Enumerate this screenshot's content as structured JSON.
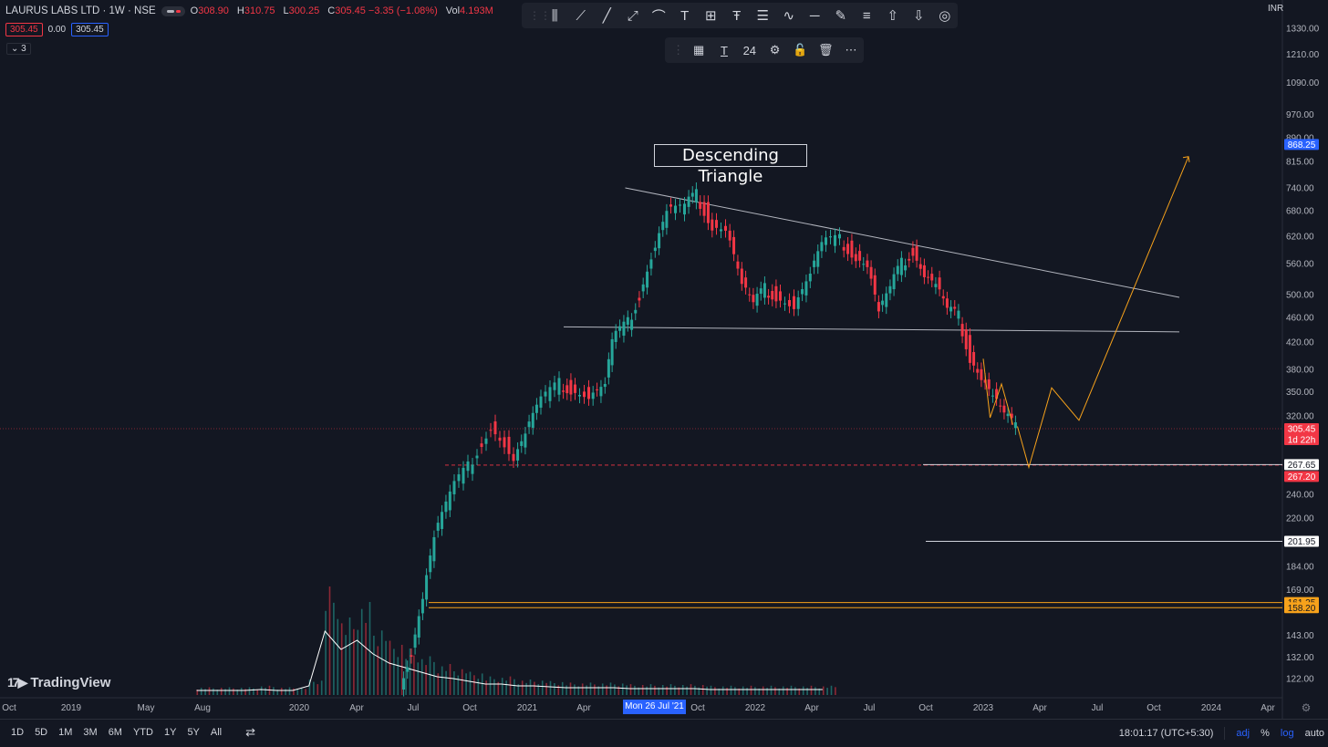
{
  "header": {
    "symbol": "LAURUS LABS LTD · 1W · NSE",
    "ohlc": [
      {
        "k": "O",
        "v": "308.90"
      },
      {
        "k": "H",
        "v": "310.75"
      },
      {
        "k": "L",
        "v": "300.25"
      },
      {
        "k": "C",
        "v": "305.45 −3.35 (−1.08%)"
      },
      {
        "k": "Vol",
        "v": "4.193M"
      }
    ],
    "sell": "305.45",
    "spread": "0.00",
    "buy": "305.45",
    "indicators_count": "3",
    "currency": "INR"
  },
  "toolbar": {
    "icons": [
      "candles-icon",
      "ray-icon",
      "trendline-icon",
      "extended-line-icon",
      "curve-icon",
      "text-icon",
      "grid-icon",
      "text-anchor-icon",
      "pattern-icon",
      "wave-icon",
      "horizontal-line-icon",
      "brush-icon",
      "menu-lines-icon",
      "arrow-up-icon",
      "arrow-down-icon",
      "target-icon"
    ],
    "font_size": "24"
  },
  "annotation": "Descending Triangle",
  "logo": "TradingView",
  "bottom": {
    "ranges": [
      "1D",
      "5D",
      "1M",
      "3M",
      "6M",
      "YTD",
      "1Y",
      "5Y",
      "All"
    ],
    "time": "18:01:17 (UTC+5:30)",
    "adj": "adj",
    "pct": "%",
    "log": "log",
    "auto": "auto"
  },
  "colors": {
    "up": "#26a69a",
    "down": "#f23645",
    "bg": "#131722",
    "accent": "#2962ff",
    "orange": "#f7a21b"
  },
  "chart_data": {
    "type": "candlestick",
    "scale": "log",
    "crosshair_date": "Mon 26 Jul '21",
    "x_ticks": [
      "Oct",
      "2019",
      "May",
      "Aug",
      "2020",
      "Apr",
      "Jul",
      "Oct",
      "2021",
      "Apr",
      "Jul",
      "Oct",
      "2022",
      "Apr",
      "Jul",
      "Oct",
      "2023",
      "Apr",
      "Jul",
      "Oct",
      "2024",
      "Apr"
    ],
    "y_ticks": [
      "1330.00",
      "1210.00",
      "1090.00",
      "970.00",
      "890.00",
      "815.00",
      "740.00",
      "680.00",
      "620.00",
      "560.00",
      "500.00",
      "460.00",
      "420.00",
      "380.00",
      "350.00",
      "320.00",
      "240.00",
      "220.00",
      "201.95",
      "184.00",
      "169.00",
      "143.00",
      "132.00",
      "122.00"
    ],
    "price_labels": [
      {
        "text": "868.25",
        "kind": "blue",
        "y": 868.25
      },
      {
        "text": "305.45",
        "sub": "1d 22h",
        "kind": "red",
        "y": 305.45
      },
      {
        "text": "267.65",
        "kind": "white",
        "y": 267.65
      },
      {
        "text": "267.20",
        "kind": "red",
        "y": 267.2
      },
      {
        "text": "201.95",
        "kind": "white",
        "y": 201.95
      },
      {
        "text": "161.25",
        "kind": "orange",
        "y": 161.25
      },
      {
        "text": "158.20",
        "kind": "orange",
        "y": 158.2
      }
    ],
    "levels": {
      "last": 305.45,
      "dashed": 267.2,
      "h1": 267.65,
      "h2": 201.95,
      "o1": 161.25,
      "o2": 158.2
    },
    "price_path": [
      [
        2020.45,
        120
      ],
      [
        2020.5,
        135
      ],
      [
        2020.55,
        165
      ],
      [
        2020.6,
        205
      ],
      [
        2020.67,
        240
      ],
      [
        2020.75,
        265
      ],
      [
        2020.85,
        310
      ],
      [
        2020.95,
        275
      ],
      [
        2021.0,
        300
      ],
      [
        2021.05,
        330
      ],
      [
        2021.15,
        360
      ],
      [
        2021.2,
        355
      ],
      [
        2021.28,
        345
      ],
      [
        2021.35,
        360
      ],
      [
        2021.38,
        420
      ],
      [
        2021.45,
        450
      ],
      [
        2021.5,
        500
      ],
      [
        2021.57,
        600
      ],
      [
        2021.62,
        680
      ],
      [
        2021.7,
        690
      ],
      [
        2021.75,
        720
      ],
      [
        2021.82,
        650
      ],
      [
        2021.88,
        640
      ],
      [
        2021.95,
        520
      ],
      [
        2022.0,
        480
      ],
      [
        2022.05,
        510
      ],
      [
        2022.1,
        500
      ],
      [
        2022.18,
        480
      ],
      [
        2022.25,
        540
      ],
      [
        2022.3,
        600
      ],
      [
        2022.38,
        610
      ],
      [
        2022.45,
        580
      ],
      [
        2022.5,
        560
      ],
      [
        2022.55,
        470
      ],
      [
        2022.6,
        510
      ],
      [
        2022.65,
        560
      ],
      [
        2022.7,
        590
      ],
      [
        2022.75,
        540
      ],
      [
        2022.8,
        520
      ],
      [
        2022.85,
        470
      ],
      [
        2022.9,
        460
      ],
      [
        2022.95,
        400
      ],
      [
        2023.0,
        370
      ],
      [
        2023.05,
        345
      ],
      [
        2023.1,
        320
      ],
      [
        2023.15,
        305
      ]
    ],
    "volume": [
      0.05,
      0.05,
      0.05,
      0.05,
      0.06,
      0.05,
      0.05,
      0.1,
      0.7,
      0.5,
      0.6,
      0.45,
      0.35,
      0.3,
      0.25,
      0.2,
      0.18,
      0.15,
      0.12,
      0.12,
      0.1,
      0.1,
      0.09,
      0.08,
      0.08,
      0.08,
      0.08,
      0.07,
      0.07,
      0.07,
      0.07,
      0.07,
      0.06,
      0.06,
      0.06,
      0.06,
      0.06,
      0.06,
      0.06,
      0.06
    ],
    "projection": [
      [
        2023.15,
        308
      ],
      [
        2023.2,
        265
      ],
      [
        2023.3,
        355
      ],
      [
        2023.42,
        315
      ],
      [
        2023.9,
        830
      ]
    ]
  }
}
